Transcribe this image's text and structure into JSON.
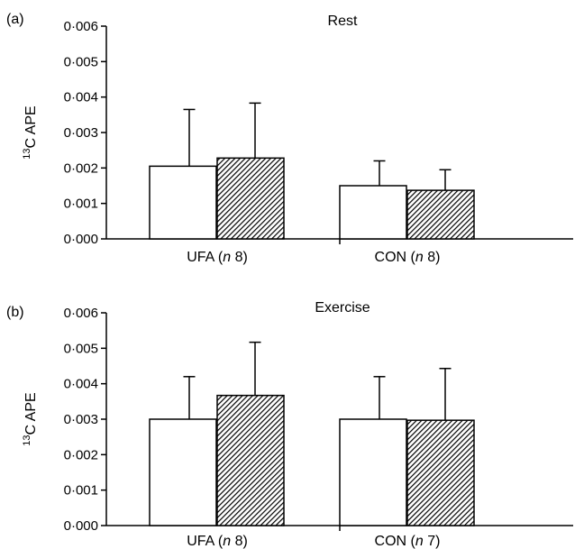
{
  "colors": {
    "axis": "#000000",
    "bar_fill_1": "#ffffff",
    "bar_fill_2": "#ffffff",
    "hatch": "#000000"
  },
  "chart_data": [
    {
      "type": "bar",
      "panel_label": "(a)",
      "title": "Rest",
      "ylabel": "13C APE",
      "ylabel_sup": "13",
      "ylabel_main": "C APE",
      "ylim": [
        0,
        0.006
      ],
      "yticks": [
        "0·000",
        "0·001",
        "0·002",
        "0·003",
        "0·004",
        "0·005",
        "0·006"
      ],
      "yticks_values": [
        0,
        0.001,
        0.002,
        0.003,
        0.004,
        0.005,
        0.006
      ],
      "categories": [
        {
          "prefix": "UFA (",
          "italic": "n",
          "suffix": " 8)"
        },
        {
          "prefix": "CON (",
          "italic": "n",
          "suffix": " 8)"
        }
      ],
      "series": [
        {
          "fill": "open",
          "values": [
            0.00205,
            0.0015
          ],
          "errors": [
            0.0016,
            0.0007
          ]
        },
        {
          "fill": "hatched",
          "values": [
            0.00228,
            0.00137
          ],
          "errors": [
            0.00155,
            0.00058
          ]
        }
      ]
    },
    {
      "type": "bar",
      "panel_label": "(b)",
      "title": "Exercise",
      "ylabel": "13C APE",
      "ylabel_sup": "13",
      "ylabel_main": "C APE",
      "ylim": [
        0,
        0.006
      ],
      "yticks": [
        "0·000",
        "0·001",
        "0·002",
        "0·003",
        "0·004",
        "0·005",
        "0·006"
      ],
      "yticks_values": [
        0,
        0.001,
        0.002,
        0.003,
        0.004,
        0.005,
        0.006
      ],
      "categories": [
        {
          "prefix": "UFA (",
          "italic": "n",
          "suffix": " 8)"
        },
        {
          "prefix": "CON (",
          "italic": "n",
          "suffix": " 7)"
        }
      ],
      "series": [
        {
          "fill": "open",
          "values": [
            0.003,
            0.003
          ],
          "errors": [
            0.0012,
            0.0012
          ]
        },
        {
          "fill": "hatched",
          "values": [
            0.00367,
            0.00297
          ],
          "errors": [
            0.0015,
            0.00146
          ]
        }
      ]
    }
  ]
}
